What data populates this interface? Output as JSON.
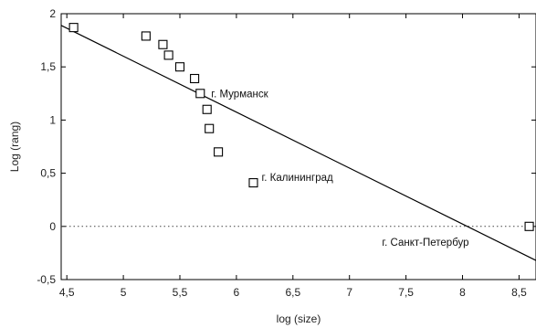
{
  "chart_data": {
    "type": "scatter",
    "xlabel": "log (size)",
    "ylabel": "Log (rang)",
    "xlim": [
      4.45,
      8.65
    ],
    "ylim": [
      -0.5,
      2.0
    ],
    "x_ticks": [
      4.5,
      5,
      5.5,
      6,
      6.5,
      7,
      7.5,
      8,
      8.5
    ],
    "x_tick_labels": [
      "4,5",
      "5",
      "5,5",
      "6",
      "6,5",
      "7",
      "7,5",
      "8",
      "8,5"
    ],
    "y_ticks": [
      -0.5,
      0,
      0.5,
      1,
      1.5,
      2
    ],
    "y_tick_labels": [
      "-0,5",
      "0",
      "0,5",
      "1",
      "1,5",
      "2"
    ],
    "grid": false,
    "legend": "none",
    "points": [
      {
        "x": 4.56,
        "y": 1.87
      },
      {
        "x": 5.2,
        "y": 1.79
      },
      {
        "x": 5.35,
        "y": 1.71
      },
      {
        "x": 5.4,
        "y": 1.61
      },
      {
        "x": 5.5,
        "y": 1.5
      },
      {
        "x": 5.63,
        "y": 1.39
      },
      {
        "x": 5.68,
        "y": 1.25
      },
      {
        "x": 5.74,
        "y": 1.1
      },
      {
        "x": 5.76,
        "y": 0.92
      },
      {
        "x": 5.84,
        "y": 0.7
      },
      {
        "x": 6.15,
        "y": 0.41
      },
      {
        "x": 8.59,
        "y": 0.0
      }
    ],
    "trend_line": {
      "x": [
        4.45,
        8.65
      ],
      "y": [
        1.89,
        -0.32
      ]
    },
    "reference_line": {
      "y": 0,
      "style": "dotted"
    },
    "annotations": [
      {
        "text": "г. Мурманск",
        "x": 5.68,
        "y": 1.25
      },
      {
        "text": "г. Калининград",
        "x": 6.15,
        "y": 0.41
      },
      {
        "text": "г. Санкт-Петербур",
        "x": 8.59,
        "y": 0.0
      }
    ],
    "colors": {
      "axis": "#000000",
      "line": "#000000",
      "marker": "#000000"
    }
  }
}
